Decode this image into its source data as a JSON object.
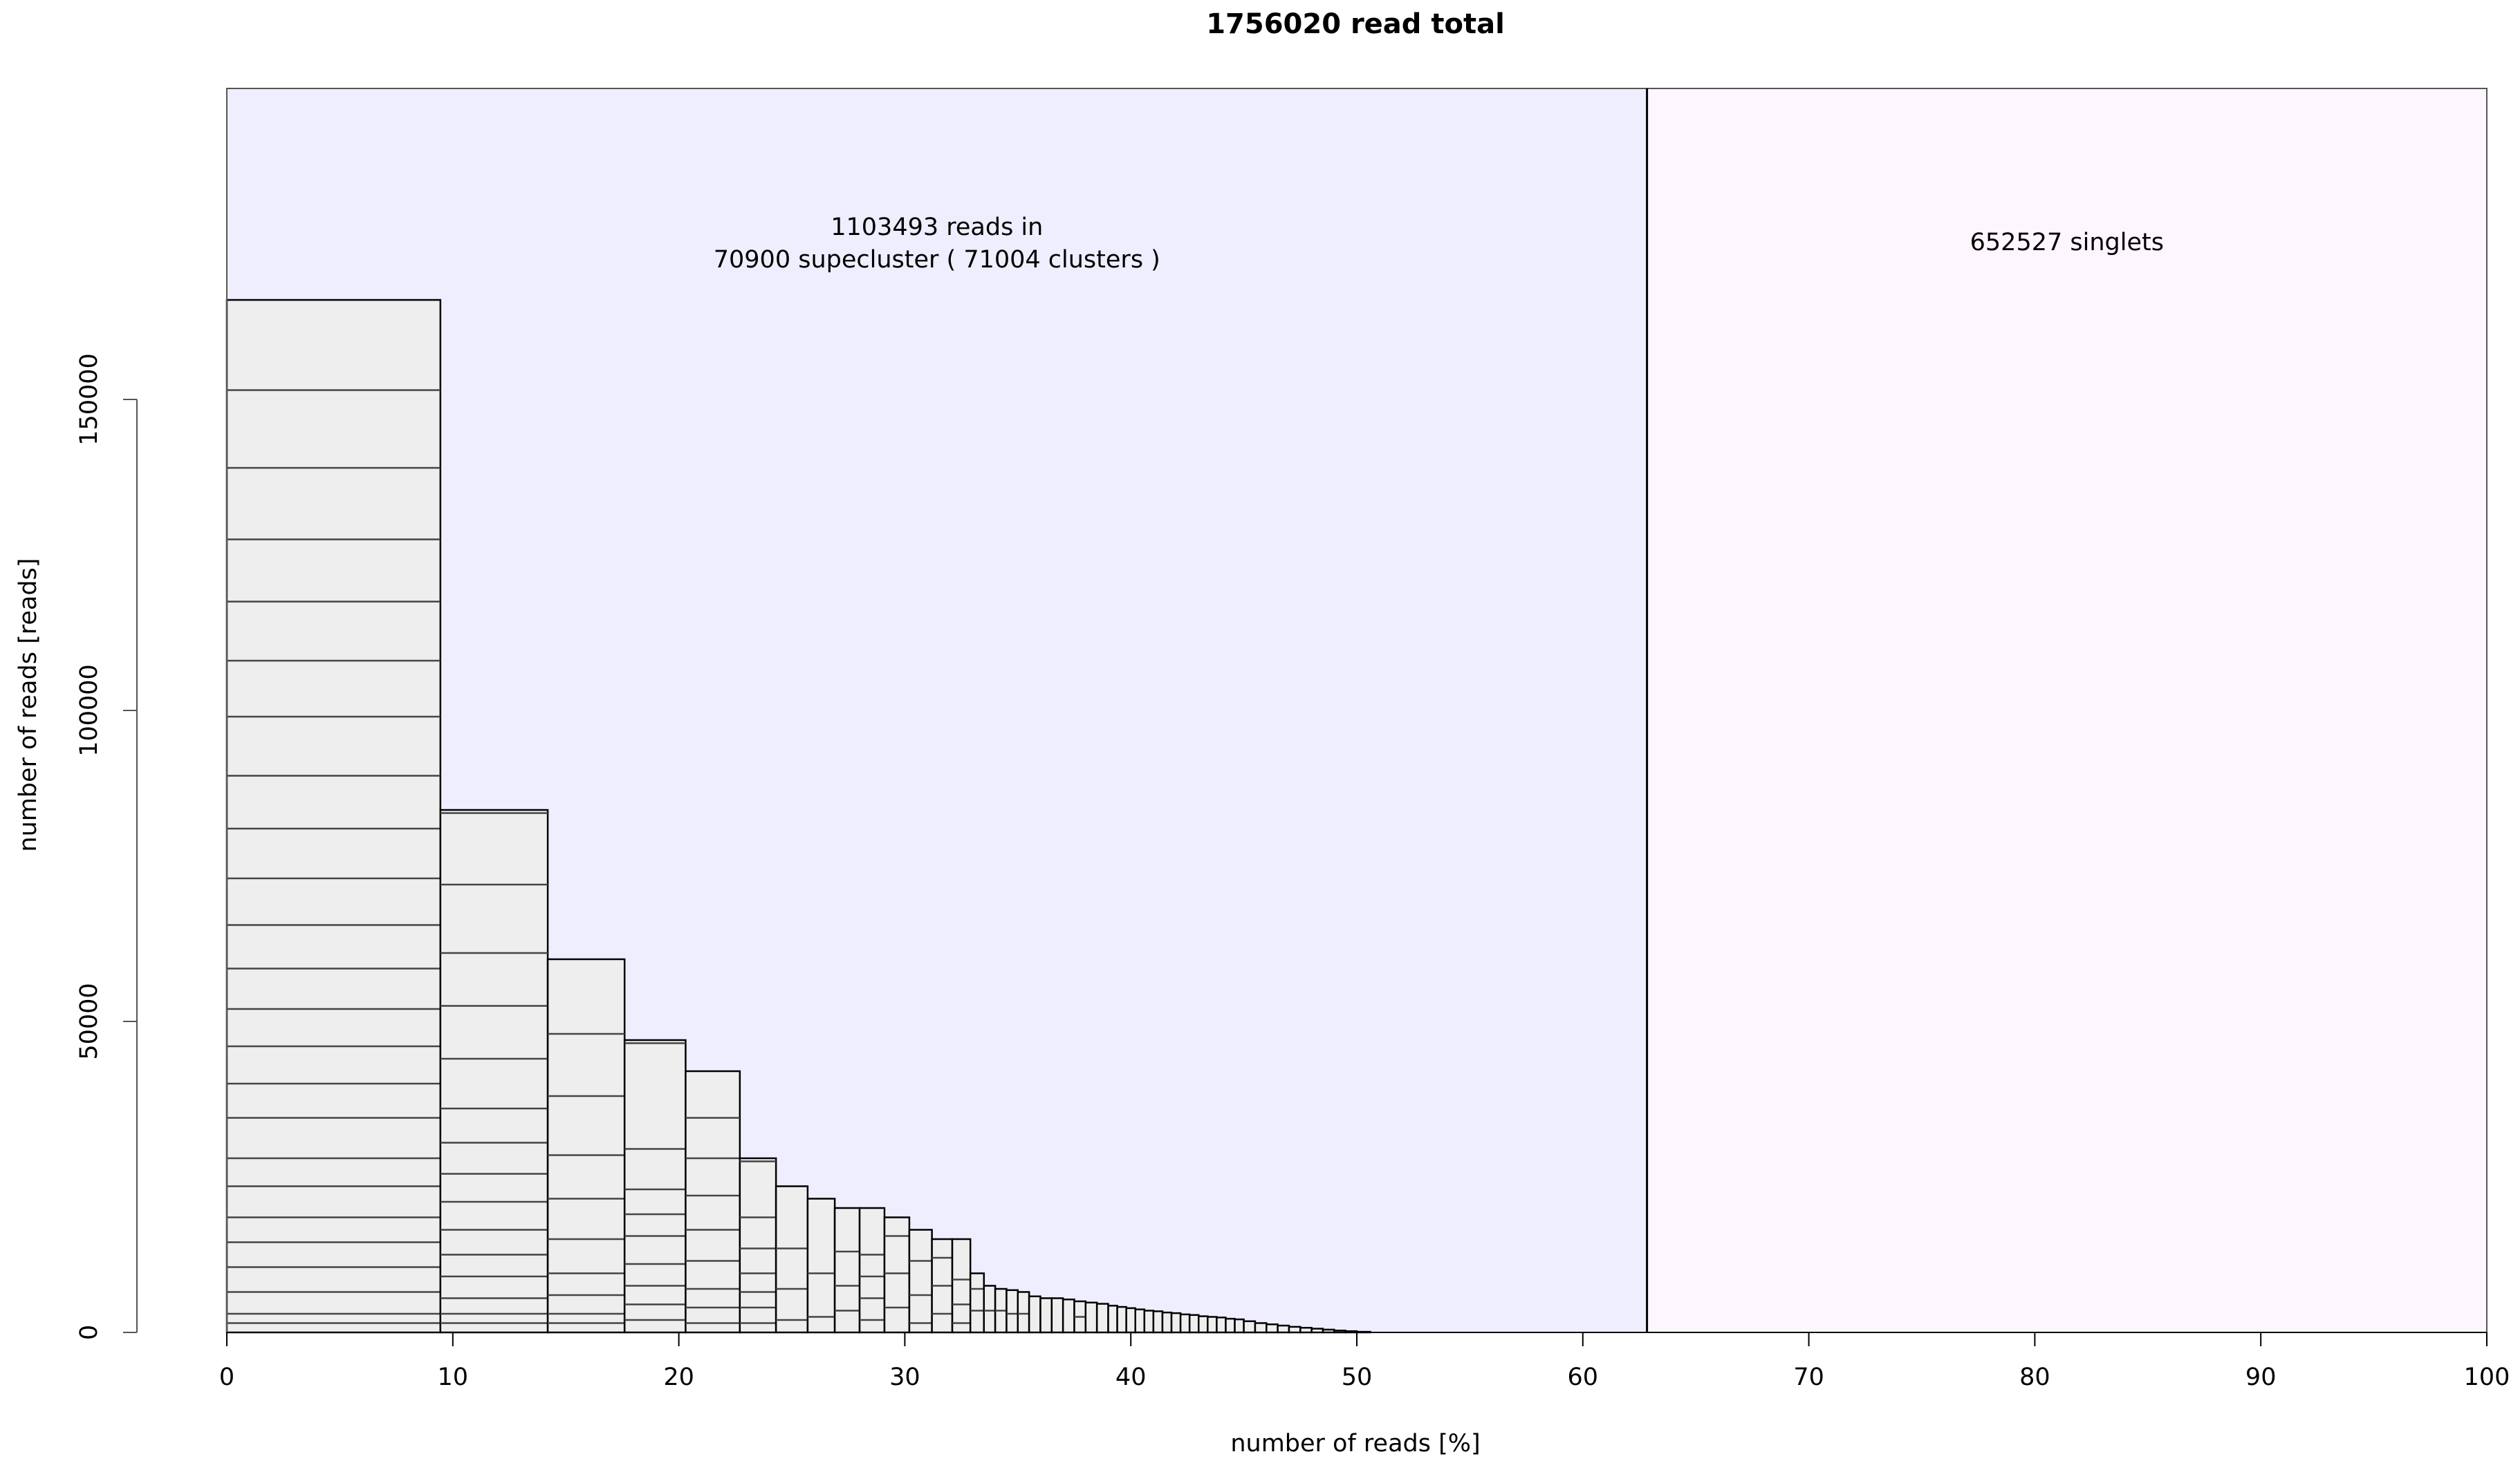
{
  "chart_data": {
    "type": "bar",
    "title": "1756020 read total",
    "xlabel": "number of reads [%]",
    "ylabel": "number of reads [reads]",
    "xlim": [
      0,
      100
    ],
    "ylim": [
      0,
      200000
    ],
    "x_ticks": [
      0,
      10,
      20,
      30,
      40,
      50,
      60,
      70,
      80,
      90,
      100
    ],
    "y_ticks": [
      0,
      50000,
      100000,
      150000
    ],
    "grid": false,
    "regions": [
      {
        "x_start": 0,
        "x_end": 62.84,
        "color": "#eeeefe",
        "label_lines": [
          "1103493 reads in",
          "70900 supecluster ( 71004  clusters )"
        ]
      },
      {
        "x_start": 62.84,
        "x_end": 100,
        "color": "#fef6fe",
        "label_lines": [
          "652527 singlets"
        ]
      }
    ],
    "superclusters": [
      {
        "x_start": 0.0,
        "x_end": 9.45,
        "total": 166000,
        "boundaries": [
          1500,
          3000,
          6500,
          10500,
          14500,
          18500,
          23500,
          28000,
          34500,
          40000,
          46000,
          52000,
          58500,
          65500,
          73000,
          81000,
          89500,
          99000,
          108000,
          117500,
          127500,
          139000,
          151500
        ]
      },
      {
        "x_start": 9.45,
        "x_end": 14.2,
        "total": 84000,
        "boundaries": [
          1500,
          3000,
          5500,
          9000,
          12500,
          16500,
          21000,
          25500,
          30500,
          36000,
          44000,
          52500,
          61000,
          72000,
          83500
        ]
      },
      {
        "x_start": 14.2,
        "x_end": 17.6,
        "total": 60000,
        "boundaries": [
          1500,
          3000,
          6000,
          9500,
          15000,
          21500,
          28500,
          38000,
          48000
        ]
      },
      {
        "x_start": 17.6,
        "x_end": 20.3,
        "total": 47000,
        "boundaries": [
          2000,
          4500,
          7500,
          11000,
          15500,
          19000,
          23000,
          29500,
          46500
        ]
      },
      {
        "x_start": 20.3,
        "x_end": 22.7,
        "total": 42000,
        "boundaries": [
          1500,
          4000,
          7000,
          11500,
          16500,
          22000,
          28000,
          34500
        ]
      },
      {
        "x_start": 22.7,
        "x_end": 24.3,
        "total": 28000,
        "boundaries": [
          1500,
          4000,
          6500,
          9500,
          13500,
          18500,
          27500
        ]
      },
      {
        "x_start": 24.3,
        "x_end": 25.7,
        "total": 23500,
        "boundaries": [
          2000,
          7000,
          13500
        ]
      },
      {
        "x_start": 25.7,
        "x_end": 26.9,
        "total": 21500,
        "boundaries": [
          2500,
          9500
        ]
      },
      {
        "x_start": 26.9,
        "x_end": 28.0,
        "total": 20000,
        "boundaries": [
          3500,
          7500,
          13000
        ]
      },
      {
        "x_start": 28.0,
        "x_end": 29.1,
        "total": 20000,
        "boundaries": [
          2000,
          5500,
          9000,
          12500
        ]
      },
      {
        "x_start": 29.1,
        "x_end": 30.2,
        "total": 18500,
        "boundaries": [
          4000,
          9500,
          15500
        ]
      },
      {
        "x_start": 30.2,
        "x_end": 31.2,
        "total": 16500,
        "boundaries": [
          1500,
          6000,
          11500
        ]
      },
      {
        "x_start": 31.2,
        "x_end": 32.1,
        "total": 15000,
        "boundaries": [
          3000,
          7500,
          12000
        ]
      },
      {
        "x_start": 32.1,
        "x_end": 32.9,
        "total": 15000,
        "boundaries": [
          1500,
          4500,
          8500
        ]
      },
      {
        "x_start": 32.9,
        "x_end": 33.5,
        "total": 9500,
        "boundaries": [
          3500,
          7000
        ]
      },
      {
        "x_start": 33.5,
        "x_end": 34.0,
        "total": 7500,
        "boundaries": [
          3500
        ]
      },
      {
        "x_start": 34.0,
        "x_end": 34.5,
        "total": 7000,
        "boundaries": [
          3500
        ]
      },
      {
        "x_start": 34.5,
        "x_end": 35.0,
        "total": 6800,
        "boundaries": [
          3000
        ]
      },
      {
        "x_start": 35.0,
        "x_end": 35.5,
        "total": 6500,
        "boundaries": [
          3000
        ]
      },
      {
        "x_start": 35.5,
        "x_end": 36.0,
        "total": 5800,
        "boundaries": []
      },
      {
        "x_start": 36.0,
        "x_end": 36.5,
        "total": 5500,
        "boundaries": []
      },
      {
        "x_start": 36.5,
        "x_end": 37.0,
        "total": 5500,
        "boundaries": []
      },
      {
        "x_start": 37.0,
        "x_end": 37.5,
        "total": 5300,
        "boundaries": []
      },
      {
        "x_start": 37.5,
        "x_end": 38.0,
        "total": 5000,
        "boundaries": [
          2500
        ]
      },
      {
        "x_start": 38.0,
        "x_end": 38.5,
        "total": 4800,
        "boundaries": []
      },
      {
        "x_start": 38.5,
        "x_end": 39.0,
        "total": 4600,
        "boundaries": []
      },
      {
        "x_start": 39.0,
        "x_end": 39.4,
        "total": 4300,
        "boundaries": []
      },
      {
        "x_start": 39.4,
        "x_end": 39.8,
        "total": 4100,
        "boundaries": []
      },
      {
        "x_start": 39.8,
        "x_end": 40.2,
        "total": 3900,
        "boundaries": []
      },
      {
        "x_start": 40.2,
        "x_end": 40.6,
        "total": 3700,
        "boundaries": []
      },
      {
        "x_start": 40.6,
        "x_end": 41.0,
        "total": 3500,
        "boundaries": []
      },
      {
        "x_start": 41.0,
        "x_end": 41.4,
        "total": 3400,
        "boundaries": []
      },
      {
        "x_start": 41.4,
        "x_end": 41.8,
        "total": 3200,
        "boundaries": []
      },
      {
        "x_start": 41.8,
        "x_end": 42.2,
        "total": 3100,
        "boundaries": []
      },
      {
        "x_start": 42.2,
        "x_end": 42.6,
        "total": 2900,
        "boundaries": []
      },
      {
        "x_start": 42.6,
        "x_end": 43.0,
        "total": 2800,
        "boundaries": []
      },
      {
        "x_start": 43.0,
        "x_end": 43.4,
        "total": 2600,
        "boundaries": []
      },
      {
        "x_start": 43.4,
        "x_end": 43.8,
        "total": 2500,
        "boundaries": []
      },
      {
        "x_start": 43.8,
        "x_end": 44.2,
        "total": 2400,
        "boundaries": []
      },
      {
        "x_start": 44.2,
        "x_end": 44.6,
        "total": 2200,
        "boundaries": []
      },
      {
        "x_start": 44.6,
        "x_end": 45.0,
        "total": 2100,
        "boundaries": []
      },
      {
        "x_start": 45.0,
        "x_end": 45.5,
        "total": 1800,
        "boundaries": []
      },
      {
        "x_start": 45.5,
        "x_end": 46.0,
        "total": 1500,
        "boundaries": []
      },
      {
        "x_start": 46.0,
        "x_end": 46.5,
        "total": 1300,
        "boundaries": []
      },
      {
        "x_start": 46.5,
        "x_end": 47.0,
        "total": 1100,
        "boundaries": []
      },
      {
        "x_start": 47.0,
        "x_end": 47.5,
        "total": 900,
        "boundaries": []
      },
      {
        "x_start": 47.5,
        "x_end": 48.0,
        "total": 750,
        "boundaries": []
      },
      {
        "x_start": 48.0,
        "x_end": 48.5,
        "total": 600,
        "boundaries": []
      },
      {
        "x_start": 48.5,
        "x_end": 49.0,
        "total": 450,
        "boundaries": []
      },
      {
        "x_start": 49.0,
        "x_end": 49.5,
        "total": 300,
        "boundaries": []
      },
      {
        "x_start": 49.5,
        "x_end": 50.0,
        "total": 200,
        "boundaries": []
      },
      {
        "x_start": 50.0,
        "x_end": 50.6,
        "total": 100,
        "boundaries": []
      }
    ]
  },
  "colors": {
    "bar_fill": "#eeeeee",
    "bar_stroke": "#000000",
    "boundary_stroke": "#444444",
    "axis": "#000000"
  }
}
